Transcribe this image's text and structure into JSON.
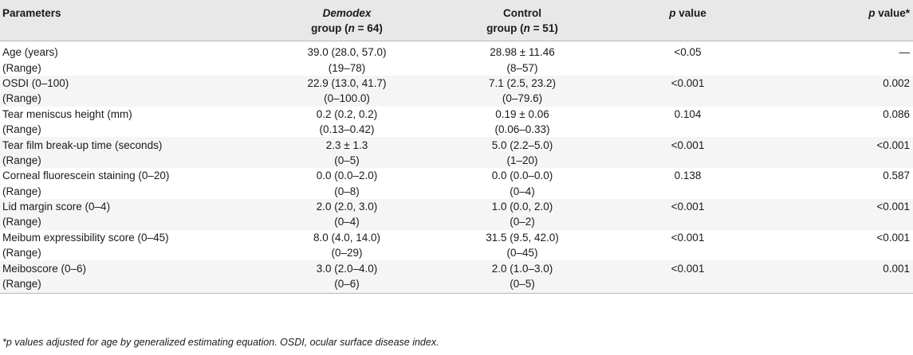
{
  "table": {
    "headers": {
      "parameters": "Parameters",
      "demodex_italic": "Demodex",
      "demodex_rest": "group (",
      "demodex_n": "n",
      "demodex_eq": " = 64)",
      "control_line1": "Control",
      "control_rest": "group (",
      "control_n": "n",
      "control_eq": " = 51)",
      "p_italic": "p",
      "p_rest": " value",
      "padj_italic": "p",
      "padj_rest": " value*"
    },
    "rows": [
      {
        "param": "Age (years)",
        "demodex": "39.0 (28.0, 57.0)",
        "control": "28.98 ± 11.46",
        "p": "<0.05",
        "p_adj": "—"
      },
      {
        "param": "(Range)",
        "demodex": "(19–78)",
        "control": "(8–57)",
        "p": "",
        "p_adj": ""
      },
      {
        "param": "OSDI (0–100)",
        "demodex": "22.9 (13.0, 41.7)",
        "control": "7.1 (2.5, 23.2)",
        "p": "<0.001",
        "p_adj": "0.002"
      },
      {
        "param": "(Range)",
        "demodex": "(0–100.0)",
        "control": "(0–79.6)",
        "p": "",
        "p_adj": ""
      },
      {
        "param": "Tear meniscus height (mm)",
        "demodex": "0.2 (0.2, 0.2)",
        "control": "0.19 ± 0.06",
        "p": "0.104",
        "p_adj": "0.086"
      },
      {
        "param": "(Range)",
        "demodex": "(0.13–0.42)",
        "control": "(0.06–0.33)",
        "p": "",
        "p_adj": ""
      },
      {
        "param": "Tear film break-up time (seconds)",
        "demodex": "2.3 ± 1.3",
        "control": "5.0 (2.2–5.0)",
        "p": "<0.001",
        "p_adj": "<0.001"
      },
      {
        "param": "(Range)",
        "demodex": "(0–5)",
        "control": "(1–20)",
        "p": "",
        "p_adj": ""
      },
      {
        "param": "Corneal fluorescein staining (0–20)",
        "demodex": "0.0 (0.0–2.0)",
        "control": "0.0 (0.0–0.0)",
        "p": "0.138",
        "p_adj": "0.587"
      },
      {
        "param": "(Range)",
        "demodex": "(0–8)",
        "control": "(0–4)",
        "p": "",
        "p_adj": ""
      },
      {
        "param": "Lid margin score (0–4)",
        "demodex": "2.0 (2.0, 3.0)",
        "control": "1.0 (0.0, 2.0)",
        "p": "<0.001",
        "p_adj": "<0.001"
      },
      {
        "param": "(Range)",
        "demodex": "(0–4)",
        "control": "(0–2)",
        "p": "",
        "p_adj": ""
      },
      {
        "param": "Meibum expressibility score (0–45)",
        "demodex": "8.0 (4.0, 14.0)",
        "control": "31.5 (9.5, 42.0)",
        "p": "<0.001",
        "p_adj": "<0.001"
      },
      {
        "param": "(Range)",
        "demodex": "(0–29)",
        "control": "(0–45)",
        "p": "",
        "p_adj": ""
      },
      {
        "param": "Meiboscore (0–6)",
        "demodex": "3.0 (2.0–4.0)",
        "control": "2.0 (1.0–3.0)",
        "p": "<0.001",
        "p_adj": "0.001"
      },
      {
        "param": "(Range)",
        "demodex": "(0–6)",
        "control": "(0–5)",
        "p": "",
        "p_adj": ""
      }
    ]
  },
  "footnote": "*p values adjusted for age by generalized estimating equation. OSDI, ocular surface disease index."
}
